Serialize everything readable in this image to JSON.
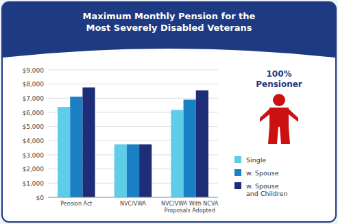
{
  "chart_data": {
    "type": "bar",
    "title": "Maximum Monthly Pension for the\nMost Severely Disabled Veterans",
    "annotation": "100%\nPensioner",
    "categories": [
      "Pension Act",
      "NVC/VWA",
      "NVC/VWA With NCVA\nProposals Adopted"
    ],
    "series": [
      {
        "name": "Single",
        "color": "#5ecde8",
        "values": [
          6378,
          3743,
          6167
        ]
      },
      {
        "name": "w. Spouse",
        "color": "#1b7fc4",
        "values": [
          7106,
          3743,
          6895
        ]
      },
      {
        "name": "w. Spouse\nand Children",
        "color": "#1e2d78",
        "values": [
          7761,
          3743,
          7550
        ]
      }
    ],
    "ylim": [
      0,
      9000
    ],
    "yticks": [
      {
        "value": 0,
        "label": "$0"
      },
      {
        "value": 1000,
        "label": "$1,000"
      },
      {
        "value": 2000,
        "label": "$2,000"
      },
      {
        "value": 3000,
        "label": "$3,000"
      },
      {
        "value": 4000,
        "label": "$4,000"
      },
      {
        "value": 5000,
        "label": "$5,000"
      },
      {
        "value": 6000,
        "label": "$6,000"
      },
      {
        "value": 7000,
        "label": "$7,000"
      },
      {
        "value": 8000,
        "label": "$8,000"
      },
      {
        "value": 9000,
        "label": "$9,000"
      }
    ],
    "grid": true,
    "legend": "right"
  }
}
